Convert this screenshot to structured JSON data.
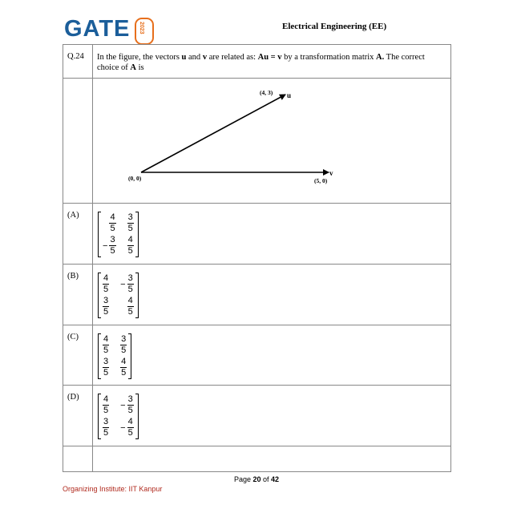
{
  "header": {
    "logo_text": "GATE",
    "logo_year": "2023",
    "subject": "Electrical Engineering (EE)"
  },
  "question": {
    "number": "Q.24",
    "text_parts": [
      "In the figure, the vectors ",
      "u",
      " and ",
      "v",
      " are related as: ",
      "Au = v",
      " by a transformation matrix ",
      "A.",
      " The correct choice of ",
      "A",
      " is"
    ]
  },
  "figure": {
    "origin_label": "(0, 0)",
    "u_label": "u",
    "u_coord": "(4, 3)",
    "v_label": "v",
    "v_coord": "(5, 0)"
  },
  "options": [
    {
      "label": "(A)",
      "matrix": [
        [
          "4/5",
          "3/5"
        ],
        [
          "-3/5",
          "4/5"
        ]
      ]
    },
    {
      "label": "(B)",
      "matrix": [
        [
          "4/5",
          "-3/5"
        ],
        [
          "3/5",
          "4/5"
        ]
      ]
    },
    {
      "label": "(C)",
      "matrix": [
        [
          "4/5",
          "3/5"
        ],
        [
          "3/5",
          "4/5"
        ]
      ]
    },
    {
      "label": "(D)",
      "matrix": [
        [
          "4/5",
          "-3/5"
        ],
        [
          "3/5",
          "-4/5"
        ]
      ]
    }
  ],
  "footer": {
    "page_prefix": "Page ",
    "page_current": "20",
    "page_sep": " of ",
    "page_total": "42",
    "organizer": "Organizing Institute: IIT Kanpur"
  }
}
